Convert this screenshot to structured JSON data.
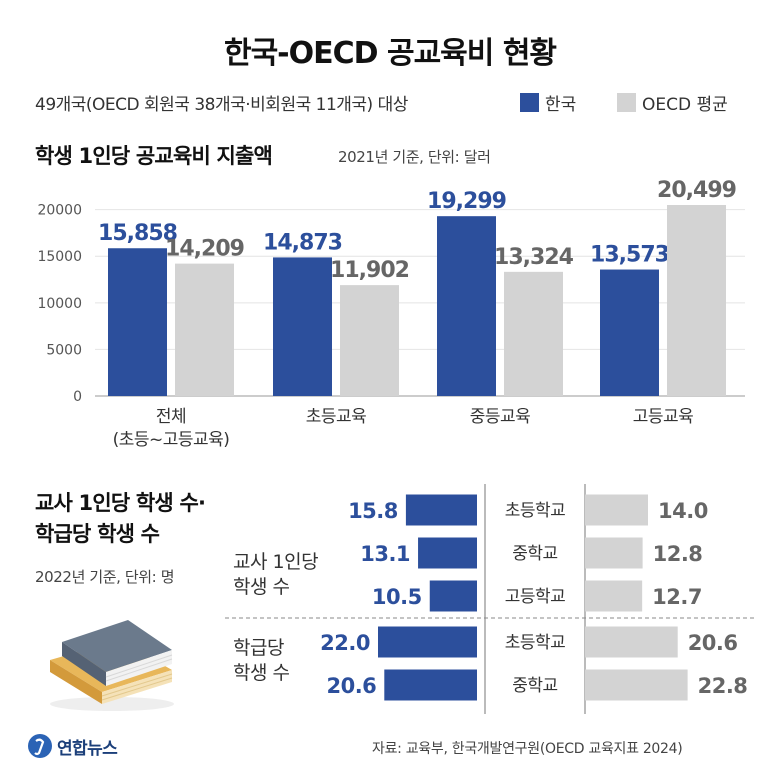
{
  "title": "한국-OECD 공교육비 현황",
  "subtitle": "49개국(OECD 회원국 38개국·비회원국 11개국) 대상",
  "legend": {
    "korea": "한국",
    "oecd": "OECD 평균"
  },
  "colors": {
    "korea": "#2c4f9c",
    "oecd": "#d3d3d3",
    "grid": "#e4e4e4"
  },
  "section1": {
    "title": "학생 1인당 공교육비 지출액",
    "note": "2021년 기준, 단위: 달러"
  },
  "section2": {
    "title_line1": "교사 1인당 학생 수·",
    "title_line2": "학급당 학생 수",
    "note": "2022년 기준, 단위: 명"
  },
  "group_labels": {
    "teacher_l1": "교사 1인당",
    "teacher_l2": "학생 수",
    "class_l1": "학급당",
    "class_l2": "학생 수"
  },
  "source": "자료: 교육부, 한국개발연구원(OECD 교육지표 2024)",
  "logo_text": "연합뉴스",
  "chart_data": [
    {
      "type": "bar",
      "title": "학생 1인당 공교육비 지출액",
      "categories": [
        [
          "전체",
          "(초등~고등교육)"
        ],
        [
          "초등교육"
        ],
        [
          "중등교육"
        ],
        [
          "고등교육"
        ]
      ],
      "series": [
        {
          "name": "한국",
          "values": [
            15858,
            14873,
            19299,
            13573
          ],
          "labels": [
            "15,858",
            "14,873",
            "19,299",
            "13,573"
          ]
        },
        {
          "name": "OECD 평균",
          "values": [
            14209,
            11902,
            13324,
            20499
          ],
          "labels": [
            "14,209",
            "11,902",
            "13,324",
            "20,499"
          ]
        }
      ],
      "ylim": [
        0,
        20499
      ],
      "yticks": [
        0,
        5000,
        10000,
        15000,
        20000
      ],
      "grid": true
    },
    {
      "type": "bar",
      "orientation": "horizontal-diverging",
      "categories": [
        "초등학교",
        "중학교",
        "고등학교",
        "초등학교",
        "중학교"
      ],
      "groups": [
        "교사 1인당 학생 수",
        "교사 1인당 학생 수",
        "교사 1인당 학생 수",
        "학급당 학생 수",
        "학급당 학생 수"
      ],
      "series": [
        {
          "name": "한국",
          "values": [
            15.8,
            13.1,
            10.5,
            22.0,
            20.6
          ],
          "labels": [
            "15.8",
            "13.1",
            "10.5",
            "22.0",
            "20.6"
          ]
        },
        {
          "name": "OECD 평균",
          "values": [
            14.0,
            12.8,
            12.7,
            20.6,
            22.8
          ],
          "labels": [
            "14.0",
            "12.8",
            "12.7",
            "20.6",
            "22.8"
          ]
        }
      ]
    }
  ]
}
